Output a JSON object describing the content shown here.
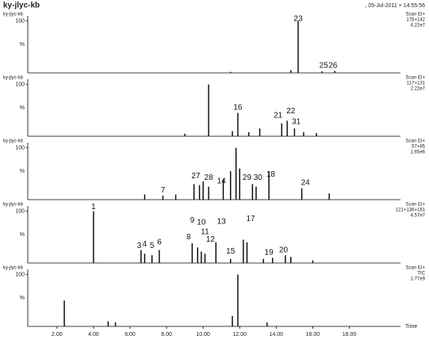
{
  "header": {
    "title": "ky-jlyc-kb",
    "date": ", 05-Jul-2011 + 14:55:56"
  },
  "chart_data": [
    {
      "type": "stem",
      "label": "ky-jlyc-kb",
      "info": [
        "Scan EI+",
        "178+142",
        "4.22e7"
      ],
      "ylabel": "%",
      "xlim": [
        0.4,
        20.8
      ],
      "ylim": [
        0,
        110
      ],
      "yticks": [
        100
      ],
      "color": "#000",
      "x": [
        11.5,
        14.8,
        15.2,
        16.5,
        17.2
      ],
      "values": [
        2,
        5,
        100,
        3,
        4
      ],
      "annotations": [
        {
          "label": "23",
          "x": 15.2,
          "y": 104
        },
        {
          "label": "25",
          "x": 16.6,
          "y": 14
        },
        {
          "label": "26",
          "x": 17.1,
          "y": 14
        }
      ]
    },
    {
      "type": "stem",
      "label": "ky-jlyc-kb",
      "info": [
        "Scan EI+",
        "117+131",
        "2.22e7"
      ],
      "ylabel": "%",
      "xlim": [
        0.4,
        20.8
      ],
      "ylim": [
        0,
        110
      ],
      "yticks": [
        100
      ],
      "color": "#000",
      "x": [
        9.0,
        10.3,
        11.6,
        11.9,
        12.5,
        13.1,
        14.3,
        14.6,
        15.0,
        15.5,
        16.2
      ],
      "values": [
        5,
        100,
        10,
        45,
        8,
        15,
        25,
        30,
        15,
        8,
        6
      ],
      "annotations": [
        {
          "label": "16",
          "x": 11.9,
          "y": 55
        },
        {
          "label": "21",
          "x": 14.1,
          "y": 40
        },
        {
          "label": "22",
          "x": 14.8,
          "y": 48
        },
        {
          "label": "31",
          "x": 15.1,
          "y": 28
        }
      ]
    },
    {
      "type": "stem",
      "label": "ky-jlyc-kb",
      "info": [
        "Scan EI+",
        "57+85",
        "1.65e6"
      ],
      "ylabel": "%",
      "xlim": [
        0.4,
        20.8
      ],
      "ylim": [
        0,
        110
      ],
      "yticks": [
        100
      ],
      "color": "#000",
      "x": [
        6.8,
        7.8,
        8.5,
        9.5,
        9.8,
        10.0,
        10.3,
        11.1,
        11.5,
        11.8,
        12.0,
        12.7,
        12.9,
        13.6,
        15.4,
        16.9
      ],
      "values": [
        10,
        8,
        10,
        30,
        28,
        35,
        25,
        40,
        55,
        100,
        60,
        30,
        25,
        55,
        22,
        12
      ],
      "annotations": [
        {
          "label": "7",
          "x": 7.8,
          "y": 18
        },
        {
          "label": "27",
          "x": 9.6,
          "y": 45
        },
        {
          "label": "28",
          "x": 10.3,
          "y": 42
        },
        {
          "label": "14",
          "x": 11.0,
          "y": 35
        },
        {
          "label": "29",
          "x": 12.4,
          "y": 42
        },
        {
          "label": "30",
          "x": 13.0,
          "y": 42
        },
        {
          "label": "18",
          "x": 13.7,
          "y": 48
        },
        {
          "label": "24",
          "x": 15.6,
          "y": 32
        }
      ]
    },
    {
      "type": "stem",
      "label": "ky-jlyc-kb",
      "info": [
        "Scan EI+",
        "121+136+161",
        "4.57e7"
      ],
      "ylabel": "%",
      "xlim": [
        0.4,
        20.8
      ],
      "ylim": [
        0,
        110
      ],
      "yticks": [
        100
      ],
      "color": "#000",
      "x": [
        4.0,
        6.6,
        6.8,
        7.2,
        7.6,
        9.4,
        9.7,
        9.9,
        10.1,
        10.7,
        11.5,
        12.2,
        12.4,
        13.3,
        13.8,
        14.5,
        14.8,
        16.0
      ],
      "values": [
        100,
        25,
        18,
        15,
        25,
        38,
        30,
        22,
        18,
        40,
        8,
        45,
        40,
        8,
        10,
        15,
        12,
        5
      ],
      "annotations": [
        {
          "label": "1",
          "x": 4.0,
          "y": 108
        },
        {
          "label": "3",
          "x": 6.5,
          "y": 33
        },
        {
          "label": "4",
          "x": 6.8,
          "y": 36
        },
        {
          "label": "5",
          "x": 7.2,
          "y": 33
        },
        {
          "label": "6",
          "x": 7.6,
          "y": 40
        },
        {
          "label": "8",
          "x": 9.2,
          "y": 50
        },
        {
          "label": "9",
          "x": 9.4,
          "y": 82
        },
        {
          "label": "10",
          "x": 9.9,
          "y": 78
        },
        {
          "label": "11",
          "x": 10.1,
          "y": 60
        },
        {
          "label": "12",
          "x": 10.4,
          "y": 45
        },
        {
          "label": "13",
          "x": 11.0,
          "y": 80
        },
        {
          "label": "15",
          "x": 11.5,
          "y": 22
        },
        {
          "label": "17",
          "x": 12.6,
          "y": 85
        },
        {
          "label": "19",
          "x": 13.6,
          "y": 20
        },
        {
          "label": "20",
          "x": 14.4,
          "y": 25
        }
      ]
    },
    {
      "type": "stem",
      "label": "ky-jlyc-kb",
      "info": [
        "Scan EI+",
        "TIC",
        "1.77e9"
      ],
      "ylabel": "%",
      "xlim": [
        0.4,
        20.8
      ],
      "ylim": [
        0,
        110
      ],
      "yticks": [
        100
      ],
      "color": "#000",
      "x": [
        2.4,
        4.8,
        5.2,
        11.6,
        11.9,
        13.5
      ],
      "values": [
        50,
        10,
        8,
        20,
        100,
        8
      ],
      "xticks": [
        {
          "value": 2,
          "label": "2.00"
        },
        {
          "value": 4,
          "label": "4.00"
        },
        {
          "value": 6,
          "label": "6.00"
        },
        {
          "value": 8,
          "label": "8.00"
        },
        {
          "value": 10,
          "label": "10.00"
        },
        {
          "value": 12,
          "label": "12.00"
        },
        {
          "value": 14,
          "label": "14.00"
        },
        {
          "value": 16,
          "label": "16.00"
        },
        {
          "value": 18,
          "label": "18.00"
        }
      ],
      "xlabel": "Time"
    }
  ]
}
